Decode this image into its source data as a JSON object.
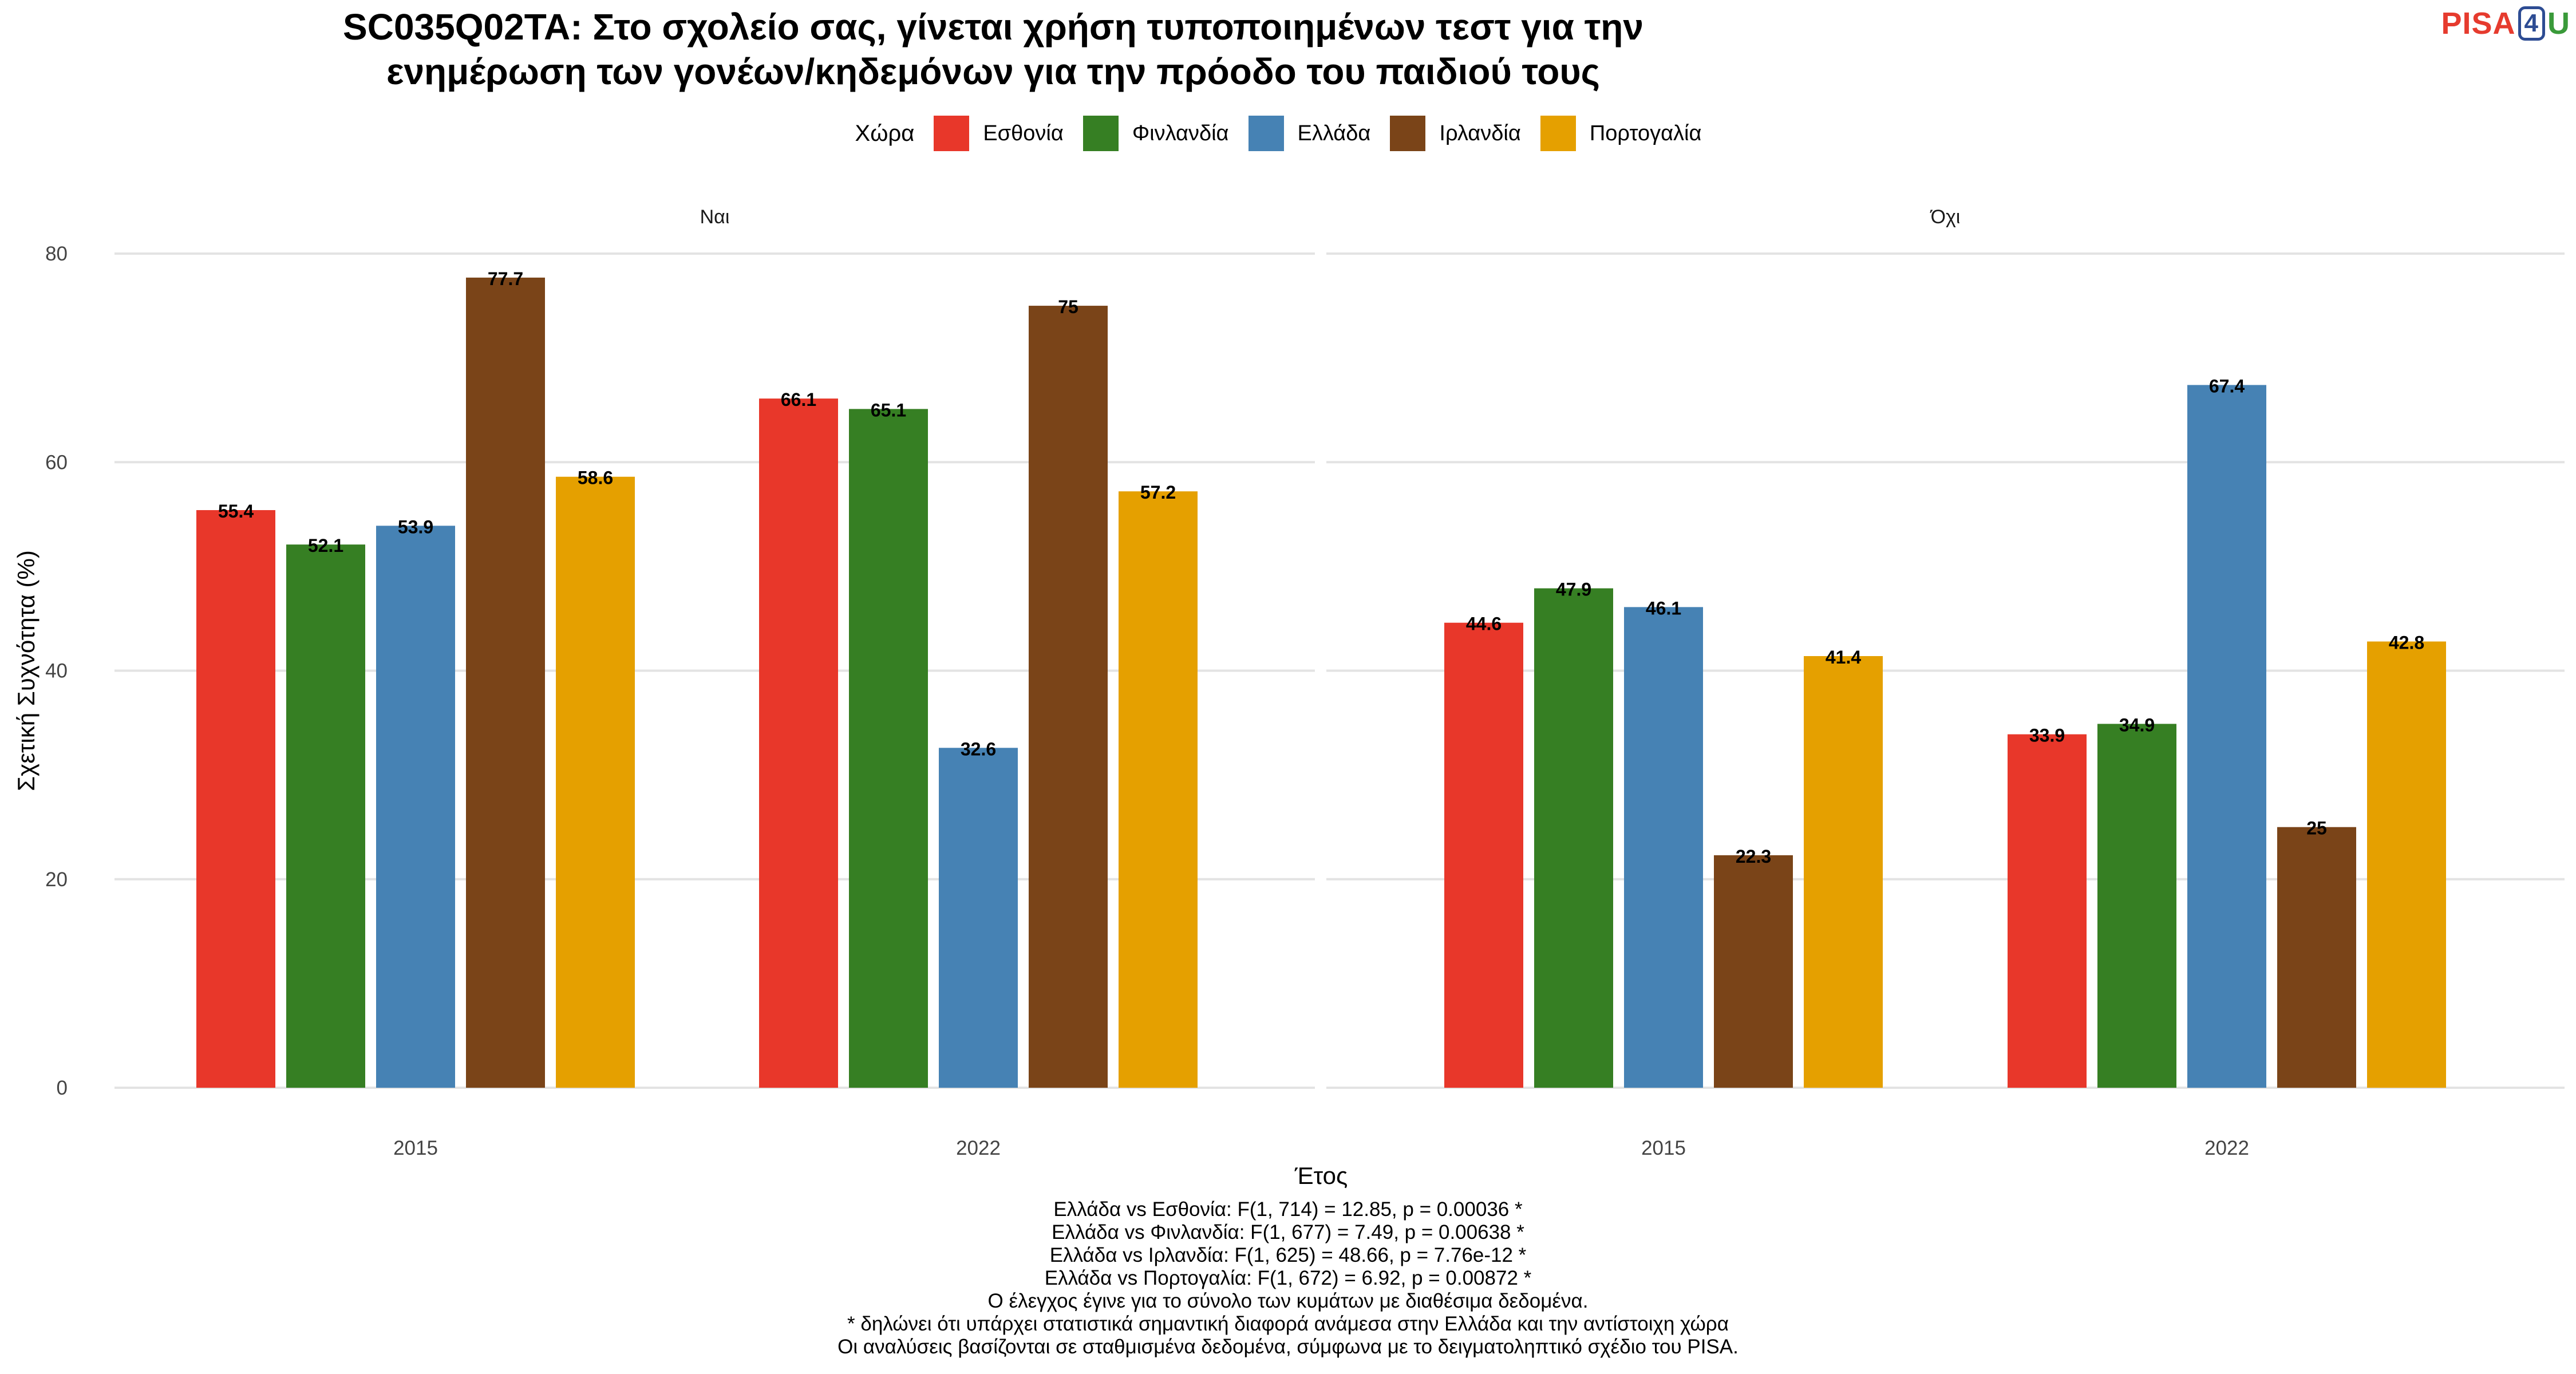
{
  "title_lines": [
    "SC035Q02TA: Στο σχολείο σας, γίνεται χρήση τυποποιημένων τεστ για την",
    "ενημέρωση των γονέων/κηδεμόνων για την πρόοδο του παιδιού τους"
  ],
  "logo": {
    "pisa": "PISA",
    "four": "4",
    "u": "U"
  },
  "legend": {
    "title": "Χώρα",
    "items": [
      {
        "label": "Εσθονία",
        "color": "#E8372A"
      },
      {
        "label": "Φινλανδία",
        "color": "#367F23"
      },
      {
        "label": "Ελλάδα",
        "color": "#4682B4"
      },
      {
        "label": "Ιρλανδία",
        "color": "#7A4418"
      },
      {
        "label": "Πορτογαλία",
        "color": "#E5A000"
      }
    ]
  },
  "chart_data": {
    "type": "bar",
    "ylabel": "Σχετική Συχνότητα (%)",
    "xlabel": "Έτος",
    "ylim": [
      0,
      80
    ],
    "yticks": [
      "0",
      "20",
      "40",
      "60",
      "80"
    ],
    "grid": true,
    "legend_position": "top",
    "panels": [
      {
        "label": "Ναι",
        "categories": [
          "2015",
          "2022"
        ],
        "series": [
          {
            "name": "Εσθονία",
            "values": [
              55.4,
              66.1
            ]
          },
          {
            "name": "Φινλανδία",
            "values": [
              52.1,
              65.1
            ]
          },
          {
            "name": "Ελλάδα",
            "values": [
              53.9,
              32.6
            ]
          },
          {
            "name": "Ιρλανδία",
            "values": [
              77.7,
              75
            ]
          },
          {
            "name": "Πορτογαλία",
            "values": [
              58.6,
              57.2
            ]
          }
        ]
      },
      {
        "label": "Όχι",
        "categories": [
          "2015",
          "2022"
        ],
        "series": [
          {
            "name": "Εσθονία",
            "values": [
              44.6,
              33.9
            ]
          },
          {
            "name": "Φινλανδία",
            "values": [
              47.9,
              34.9
            ]
          },
          {
            "name": "Ελλάδα",
            "values": [
              46.1,
              67.4
            ]
          },
          {
            "name": "Ιρλανδία",
            "values": [
              22.3,
              25
            ]
          },
          {
            "name": "Πορτογαλία",
            "values": [
              41.4,
              42.8
            ]
          }
        ]
      }
    ]
  },
  "footnotes": [
    "Ελλάδα vs Εσθονία: F(1, 714) = 12.85, p = 0.00036 *",
    "Ελλάδα vs Φινλανδία: F(1, 677) = 7.49, p = 0.00638 *",
    "Ελλάδα vs Ιρλανδία: F(1, 625) = 48.66, p = 7.76e-12 *",
    "Ελλάδα vs Πορτογαλία: F(1, 672) = 6.92, p = 0.00872 *",
    "Ο έλεγχος έγινε για το σύνολο των κυμάτων με διαθέσιμα δεδομένα.",
    "* δηλώνει ότι υπάρχει στατιστικά σημαντική διαφορά ανάμεσα στην Ελλάδα και την αντίστοιχη χώρα",
    "Οι αναλύσεις βασίζονται σε σταθμισμένα δεδομένα, σύμφωνα με το δειγματοληπτικό σχέδιο του PISA."
  ]
}
